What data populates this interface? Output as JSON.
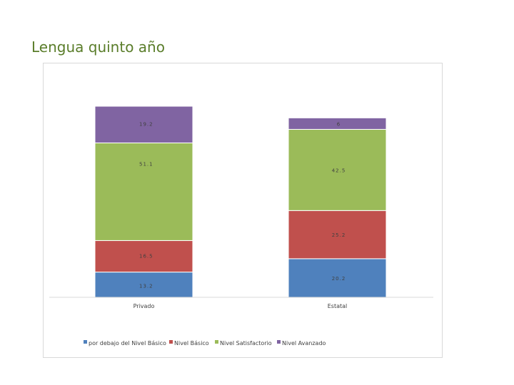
{
  "slide": {
    "title": "Lengua quinto año"
  },
  "chart_data": {
    "type": "bar",
    "stacked": true,
    "categories": [
      "Privado",
      "Estatal"
    ],
    "series": [
      {
        "name": "por debajo del Nivel Básico",
        "values": [
          13.2,
          20.2
        ],
        "labels": [
          "13.2",
          "20.2"
        ],
        "color": "#4f81bd"
      },
      {
        "name": "Nivel Básico",
        "values": [
          16.5,
          25.2
        ],
        "labels": [
          "16.5",
          "25.2"
        ],
        "color": "#c0504d"
      },
      {
        "name": "Nivel Satisfactorio",
        "values": [
          51.1,
          42.5
        ],
        "labels": [
          "51.1",
          "42.5"
        ],
        "color": "#9bbb59"
      },
      {
        "name": "Nivel Avanzado",
        "values": [
          19.2,
          6
        ],
        "labels": [
          "19.2",
          "6"
        ],
        "color": "#8064a2"
      }
    ],
    "ylim": [
      0,
      100
    ],
    "grid": false,
    "legend_position": "bottom"
  }
}
